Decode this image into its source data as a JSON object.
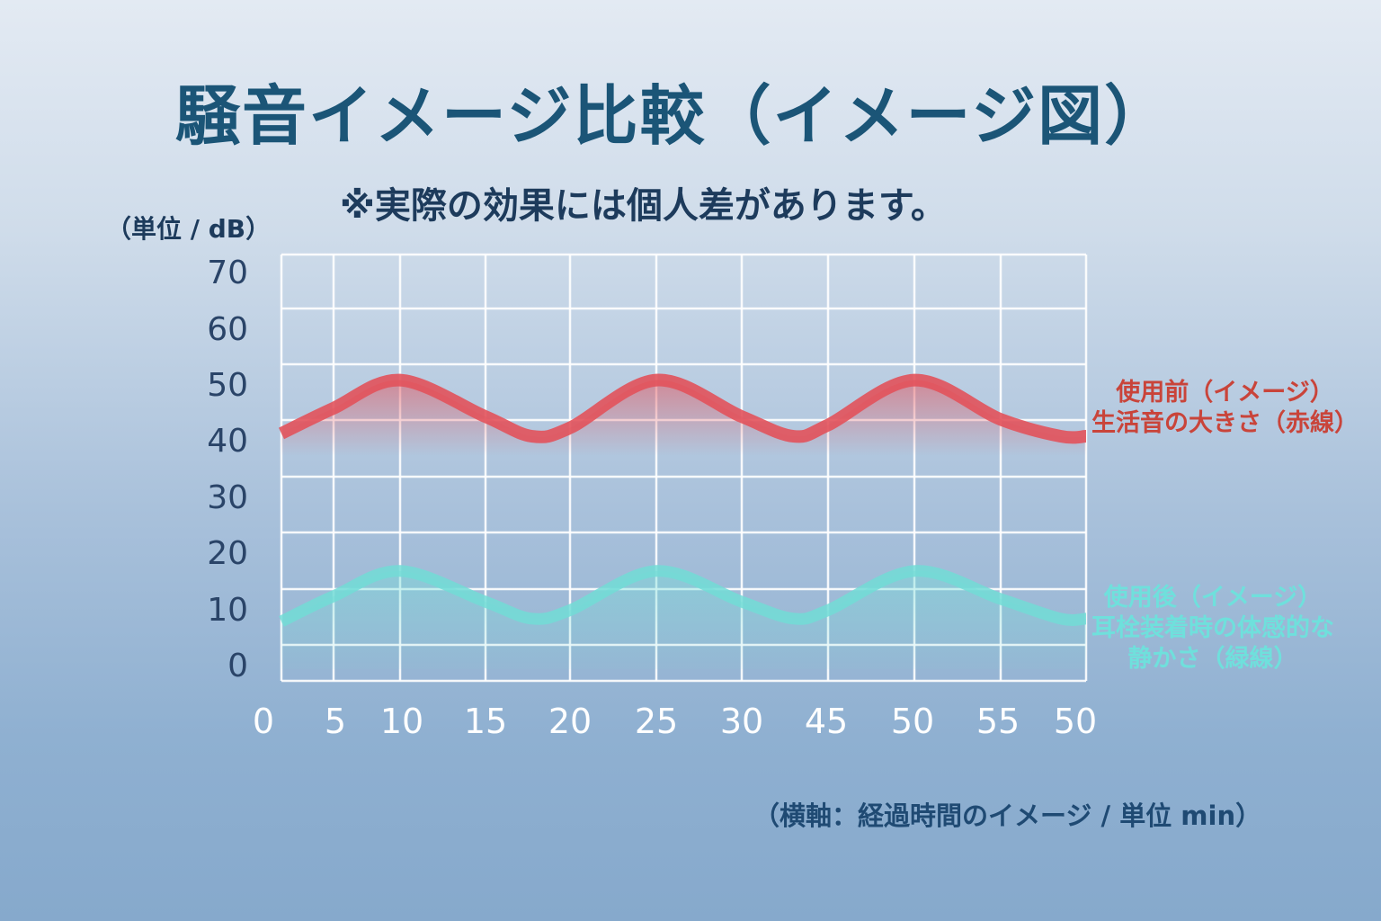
{
  "title": "騒音イメージ比較（イメージ図）",
  "subtitle": "※実際の効果には個人差があります。",
  "chart_data": {
    "type": "line",
    "ylabel": "（単位 / dB）",
    "xlabel": "（横軸：経過時間のイメージ / 単位 min）",
    "ylim": [
      0,
      70
    ],
    "y_ticks": [
      "0",
      "10",
      "20",
      "30",
      "40",
      "50",
      "60",
      "70"
    ],
    "x_ticks": [
      "0",
      "5",
      "10",
      "15",
      "20",
      "25",
      "30",
      "45",
      "50",
      "55",
      "50"
    ],
    "grid": true,
    "legend_placement": "right",
    "series": [
      {
        "name": "使用前（イメージ）",
        "label_lines": [
          "使用前（イメージ）",
          "生活音の大きさ（赤線）"
        ],
        "color": "#e2525b",
        "points": [
          [
            0,
            42
          ],
          [
            1,
            46.5
          ],
          [
            2,
            51.5
          ],
          [
            3,
            45
          ],
          [
            3.55,
            41.5
          ],
          [
            4,
            43
          ],
          [
            5,
            51.5
          ],
          [
            6,
            45
          ],
          [
            6.6,
            41.5
          ],
          [
            7,
            43.5
          ],
          [
            8,
            51.5
          ],
          [
            9,
            44.5
          ],
          [
            9.7,
            41.5
          ],
          [
            10,
            41.5
          ]
        ]
      },
      {
        "name": "使用後（イメージ）",
        "label_lines": [
          "使用後（イメージ）",
          "耳栓装着時の体感的な",
          "静かさ（緑線）"
        ],
        "color": "#72dcd6",
        "points": [
          [
            0,
            8.5
          ],
          [
            1,
            13
          ],
          [
            2,
            17.5
          ],
          [
            3,
            12
          ],
          [
            3.55,
            9
          ],
          [
            4,
            10.5
          ],
          [
            5,
            17.5
          ],
          [
            6,
            12
          ],
          [
            6.6,
            9
          ],
          [
            7,
            10.5
          ],
          [
            8,
            17.5
          ],
          [
            9,
            12.5
          ],
          [
            9.7,
            9
          ],
          [
            10,
            9
          ]
        ]
      }
    ]
  }
}
